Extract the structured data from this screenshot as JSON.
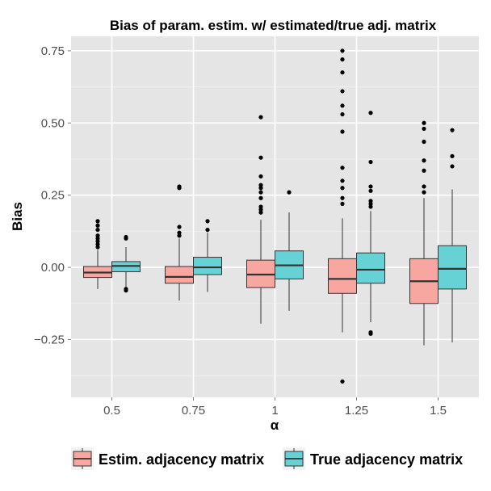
{
  "chart_data": {
    "type": "boxplot",
    "title": "Bias of param. estim. w/ estimated/true adj. matrix",
    "xlabel": "α",
    "ylabel": "Bias",
    "categories": [
      "0.5",
      "0.75",
      "1",
      "1.25",
      "1.5"
    ],
    "ylim": [
      -0.45,
      0.8
    ],
    "yticks": [
      -0.25,
      0.0,
      0.25,
      0.5,
      0.75
    ],
    "ytick_labels": [
      "−0.25",
      "0.00",
      "0.25",
      "0.50",
      "0.75"
    ],
    "grid": true,
    "legend_position": "bottom",
    "series": [
      {
        "name": "Estim. adjacency matrix",
        "color": "#f8a6a0",
        "boxes": [
          {
            "whisker_low": -0.075,
            "q1": -0.035,
            "median": -0.018,
            "q3": 0.003,
            "whisker_high": 0.06,
            "outliers": [
              0.07,
              0.08,
              0.09,
              0.1,
              0.11,
              0.13,
              0.145,
              0.16
            ]
          },
          {
            "whisker_low": -0.115,
            "q1": -0.055,
            "median": -0.033,
            "q3": 0.003,
            "whisker_high": 0.1,
            "outliers": [
              0.11,
              0.12,
              0.14,
              0.275,
              0.28
            ]
          },
          {
            "whisker_low": -0.195,
            "q1": -0.07,
            "median": -0.025,
            "q3": 0.025,
            "whisker_high": 0.165,
            "outliers": [
              0.19,
              0.2,
              0.21,
              0.24,
              0.26,
              0.275,
              0.285,
              0.315,
              0.38,
              0.52
            ]
          },
          {
            "whisker_low": -0.225,
            "q1": -0.09,
            "median": -0.04,
            "q3": 0.03,
            "whisker_high": 0.17,
            "outliers": [
              -0.395,
              0.22,
              0.24,
              0.275,
              0.3,
              0.345,
              0.47,
              0.53,
              0.56,
              0.61,
              0.675,
              0.72,
              0.75
            ]
          },
          {
            "whisker_low": -0.27,
            "q1": -0.125,
            "median": -0.048,
            "q3": 0.03,
            "whisker_high": 0.24,
            "outliers": [
              0.26,
              0.28,
              0.335,
              0.37,
              0.435,
              0.48,
              0.5
            ]
          }
        ]
      },
      {
        "name": "True adjacency matrix",
        "color": "#66d2d6",
        "boxes": [
          {
            "whisker_low": -0.07,
            "q1": -0.015,
            "median": 0.005,
            "q3": 0.02,
            "whisker_high": 0.07,
            "outliers": [
              -0.08,
              -0.075,
              0.1,
              0.105
            ]
          },
          {
            "whisker_low": -0.085,
            "q1": -0.025,
            "median": 0.0,
            "q3": 0.035,
            "whisker_high": 0.12,
            "outliers": [
              0.13,
              0.16
            ]
          },
          {
            "whisker_low": -0.15,
            "q1": -0.04,
            "median": 0.007,
            "q3": 0.057,
            "whisker_high": 0.19,
            "outliers": [
              0.26
            ]
          },
          {
            "whisker_low": -0.19,
            "q1": -0.055,
            "median": -0.008,
            "q3": 0.05,
            "whisker_high": 0.195,
            "outliers": [
              -0.23,
              -0.225,
              0.21,
              0.22,
              0.23,
              0.265,
              0.28,
              0.365,
              0.535
            ]
          },
          {
            "whisker_low": -0.26,
            "q1": -0.075,
            "median": -0.005,
            "q3": 0.075,
            "whisker_high": 0.27,
            "outliers": [
              0.35,
              0.385,
              0.475
            ]
          }
        ]
      }
    ]
  }
}
